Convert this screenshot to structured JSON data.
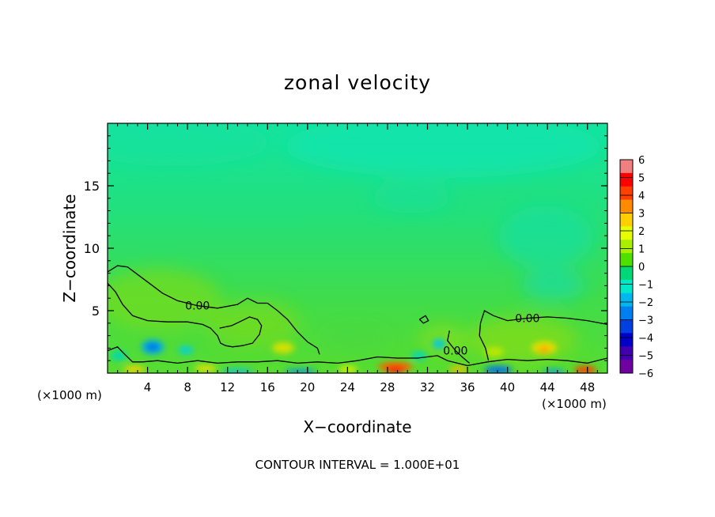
{
  "chart_data": {
    "type": "heatmap",
    "title": "zonal velocity",
    "xlabel": "X−coordinate",
    "ylabel": "Z−coordinate",
    "x_unit_left": "(×1000 m)",
    "x_unit_right": "(×1000 m)",
    "footer": "CONTOUR INTERVAL = 1.000E+01",
    "xlim": [
      0,
      50
    ],
    "ylim": [
      0,
      20
    ],
    "x_ticks": [
      4,
      8,
      12,
      16,
      20,
      24,
      28,
      32,
      36,
      40,
      44,
      48
    ],
    "y_ticks": [
      5,
      10,
      15
    ],
    "colorbar": {
      "range": [
        -6,
        6
      ],
      "tick_labels": [
        "6",
        "5",
        "4",
        "3",
        "2",
        "1",
        "0",
        "−1",
        "−2",
        "−3",
        "−4",
        "−5",
        "−6"
      ],
      "colors": [
        "#f08080",
        "#ff0000",
        "#ff4000",
        "#ff8c00",
        "#ffd000",
        "#e6ff00",
        "#a8f000",
        "#50e000",
        "#00d878",
        "#00e8c8",
        "#00b8f0",
        "#0080f0",
        "#0040e0",
        "#0000c8",
        "#4000b0",
        "#7000a0"
      ]
    },
    "contours": [
      {
        "label": "0.00",
        "level": 0,
        "points": [
          [
            0,
            8.1
          ],
          [
            1,
            8.6
          ],
          [
            2,
            8.5
          ],
          [
            3,
            7.9
          ],
          [
            4,
            7.3
          ],
          [
            5.5,
            6.4
          ],
          [
            7,
            5.8
          ],
          [
            9,
            5.4
          ],
          [
            11,
            5.2
          ],
          [
            13,
            5.5
          ],
          [
            14,
            6.0
          ],
          [
            15,
            5.6
          ],
          [
            16,
            5.6
          ],
          [
            17,
            5.0
          ],
          [
            18,
            4.3
          ],
          [
            19,
            3.3
          ],
          [
            20,
            2.5
          ],
          [
            21,
            2.0
          ],
          [
            21.2,
            1.5
          ]
        ]
      },
      {
        "label": "",
        "level": 0,
        "points": [
          [
            0,
            7.2
          ],
          [
            0.8,
            6.5
          ],
          [
            1.5,
            5.5
          ],
          [
            2.5,
            4.6
          ],
          [
            4,
            4.2
          ],
          [
            6,
            4.1
          ],
          [
            8,
            4.1
          ],
          [
            9.5,
            3.9
          ],
          [
            10.3,
            3.6
          ],
          [
            11,
            3.0
          ],
          [
            11.3,
            2.4
          ],
          [
            11.8,
            2.2
          ],
          [
            12.5,
            2.1
          ],
          [
            13.5,
            2.2
          ],
          [
            14.5,
            2.4
          ],
          [
            15.2,
            3.1
          ],
          [
            15.4,
            3.8
          ],
          [
            15.0,
            4.3
          ],
          [
            14.2,
            4.5
          ],
          [
            13.2,
            4.1
          ],
          [
            12.4,
            3.8
          ],
          [
            11.8,
            3.7
          ],
          [
            11.2,
            3.6
          ]
        ]
      },
      {
        "label": "0.00",
        "level": 0,
        "points": [
          [
            50,
            3.9
          ],
          [
            48,
            4.2
          ],
          [
            46,
            4.4
          ],
          [
            44,
            4.5
          ],
          [
            42,
            4.4
          ],
          [
            40,
            4.2
          ],
          [
            38.6,
            4.6
          ],
          [
            37.7,
            5.0
          ],
          [
            37.3,
            4.0
          ],
          [
            37.2,
            3.0
          ],
          [
            37.8,
            2.0
          ],
          [
            38.1,
            1.0
          ]
        ]
      },
      {
        "label": "0.00",
        "level": 0,
        "points": [
          [
            34.2,
            3.4
          ],
          [
            34.0,
            2.6
          ],
          [
            34.8,
            1.8
          ],
          [
            35.6,
            1.2
          ],
          [
            36.2,
            0.8
          ]
        ]
      },
      {
        "label": "",
        "level": 0,
        "points": [
          [
            31.2,
            4.3
          ],
          [
            31.8,
            4.6
          ],
          [
            32.1,
            4.2
          ],
          [
            31.6,
            4.0
          ],
          [
            31.2,
            4.3
          ]
        ]
      },
      {
        "label": "",
        "level": 0,
        "points": [
          [
            0,
            1.8
          ],
          [
            1,
            2.1
          ],
          [
            1.6,
            1.6
          ],
          [
            2.5,
            0.9
          ],
          [
            3.5,
            0.9
          ],
          [
            5,
            1.0
          ],
          [
            7,
            0.8
          ],
          [
            9,
            1.0
          ],
          [
            11,
            0.8
          ],
          [
            13,
            0.9
          ],
          [
            15,
            0.9
          ],
          [
            17,
            1.0
          ],
          [
            19,
            0.8
          ],
          [
            21,
            0.9
          ],
          [
            23,
            0.8
          ],
          [
            25,
            1.0
          ],
          [
            27,
            1.3
          ],
          [
            29,
            1.2
          ],
          [
            31,
            1.2
          ],
          [
            33,
            1.4
          ],
          [
            34,
            1.0
          ],
          [
            36,
            0.6
          ],
          [
            38,
            0.9
          ],
          [
            40,
            1.1
          ],
          [
            42,
            1.0
          ],
          [
            44,
            1.1
          ],
          [
            46,
            1.0
          ],
          [
            48,
            0.8
          ],
          [
            50,
            1.2
          ]
        ]
      }
    ]
  }
}
